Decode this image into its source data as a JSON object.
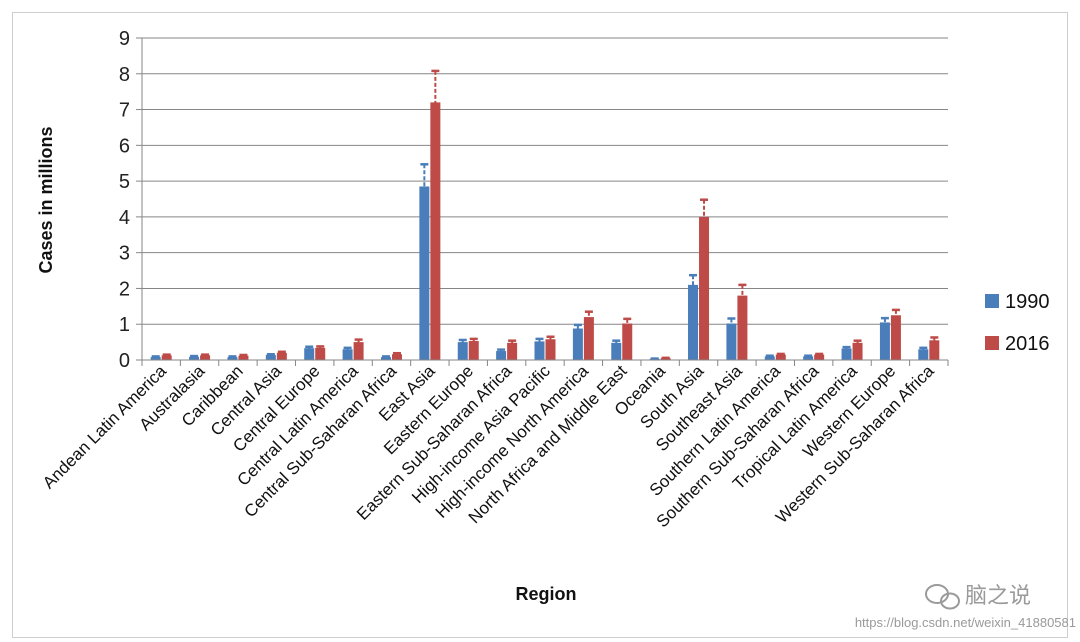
{
  "chart_data": {
    "type": "bar",
    "title": "",
    "xlabel": "Region",
    "ylabel": "Cases in millions",
    "ylim": [
      0,
      9
    ],
    "yticks": [
      "0",
      "1",
      "2",
      "3",
      "4",
      "5",
      "6",
      "7",
      "8",
      "9"
    ],
    "grid": true,
    "legend_position": "right",
    "categories": [
      "Andean Latin America",
      "Australasia",
      "Caribbean",
      "Central Asia",
      "Central Europe",
      "Central Latin America",
      "Central Sub-Saharan Africa",
      "East Asia",
      "Eastern Europe",
      "Eastern Sub-Saharan Africa",
      "High-income Asia Pacific",
      "High-income North America",
      "North Africa and Middle East",
      "Oceania",
      "South Asia",
      "Southeast Asia",
      "Southern Latin America",
      "Southern Sub-Saharan Africa",
      "Tropical Latin America",
      "Western Europe",
      "Western Sub-Saharan Africa"
    ],
    "series": [
      {
        "name": "1990",
        "color": "#4a7ebb",
        "values": [
          0.08,
          0.09,
          0.08,
          0.14,
          0.33,
          0.3,
          0.08,
          4.85,
          0.5,
          0.25,
          0.52,
          0.88,
          0.48,
          0.03,
          2.1,
          1.02,
          0.1,
          0.1,
          0.32,
          1.05,
          0.3
        ],
        "error": [
          0.02,
          0.02,
          0.02,
          0.02,
          0.04,
          0.04,
          0.02,
          0.62,
          0.06,
          0.04,
          0.07,
          0.1,
          0.06,
          0.01,
          0.27,
          0.14,
          0.02,
          0.02,
          0.04,
          0.12,
          0.04
        ]
      },
      {
        "name": "2016",
        "color": "#be4b48",
        "values": [
          0.13,
          0.13,
          0.12,
          0.2,
          0.34,
          0.5,
          0.16,
          7.2,
          0.53,
          0.48,
          0.58,
          1.2,
          1.02,
          0.05,
          4.0,
          1.8,
          0.15,
          0.15,
          0.48,
          1.25,
          0.55
        ],
        "error": [
          0.02,
          0.02,
          0.02,
          0.03,
          0.04,
          0.07,
          0.03,
          0.88,
          0.06,
          0.06,
          0.07,
          0.15,
          0.13,
          0.01,
          0.48,
          0.3,
          0.02,
          0.02,
          0.06,
          0.15,
          0.08
        ]
      }
    ]
  },
  "watermark": {
    "brand": "脑之说",
    "url": "https://blog.csdn.net/weixin_41880581"
  }
}
